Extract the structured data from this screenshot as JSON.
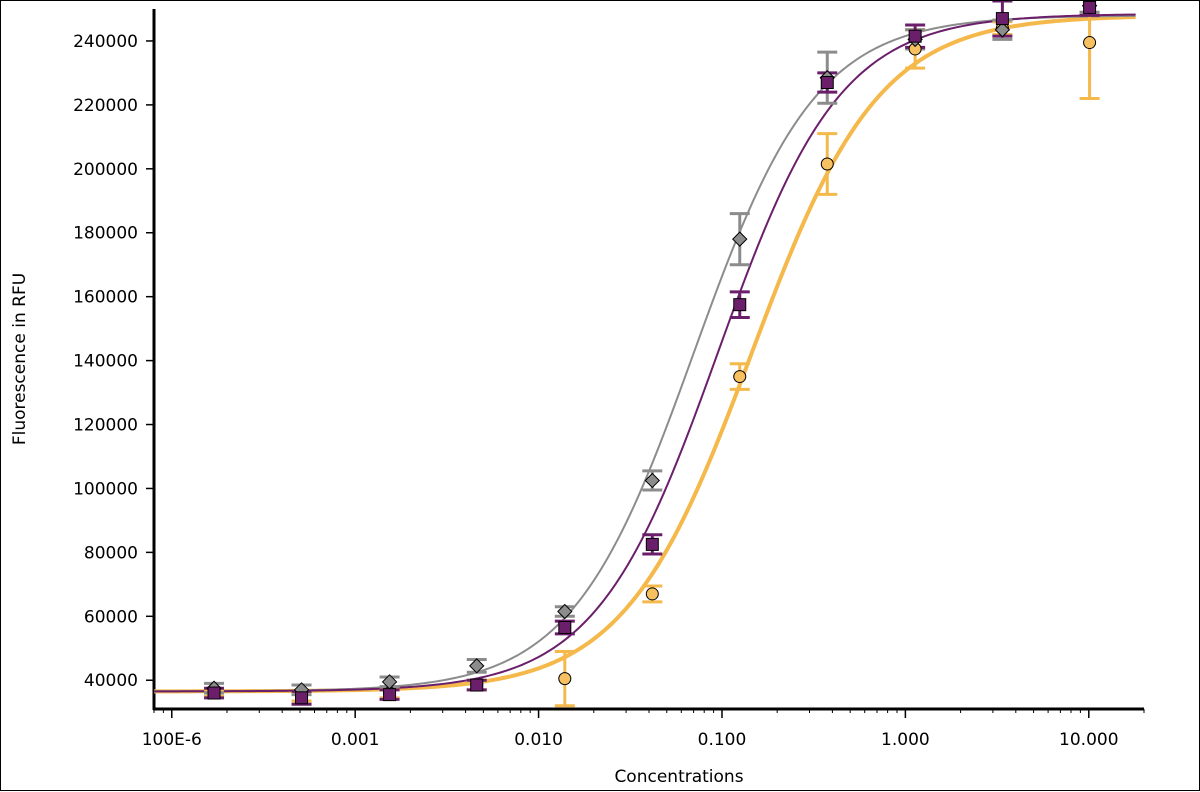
{
  "chart_data": {
    "type": "scatter",
    "xlabel": "Concentrations",
    "ylabel": "Fluorescence in RFU",
    "x_scale": "log",
    "xlim": [
      8e-05,
      20
    ],
    "ylim": [
      31000,
      250000
    ],
    "x_ticks": [
      {
        "value": 0.0001,
        "label": "100E-6"
      },
      {
        "value": 0.001,
        "label": "0.001"
      },
      {
        "value": 0.01,
        "label": "0.010"
      },
      {
        "value": 0.1,
        "label": "0.100"
      },
      {
        "value": 1,
        "label": "1.000"
      },
      {
        "value": 10,
        "label": "10.000"
      }
    ],
    "y_ticks": [
      40000,
      60000,
      80000,
      100000,
      120000,
      140000,
      160000,
      180000,
      200000,
      220000,
      240000
    ],
    "grid": false,
    "legend": "none",
    "series": [
      {
        "marker": "diamond",
        "color": "#8c8c8c",
        "fill": "#8c8c8c",
        "fit": {
          "bottom": 36500,
          "top": 248000,
          "ec50": 0.07,
          "hill": 1.3
        },
        "points": [
          {
            "x": 0.00017,
            "y": 37500,
            "err": 1500
          },
          {
            "x": 0.00051,
            "y": 37000,
            "err": 1500
          },
          {
            "x": 0.00154,
            "y": 39500,
            "err": 1500
          },
          {
            "x": 0.0046,
            "y": 44500,
            "err": 2000
          },
          {
            "x": 0.0139,
            "y": 61500,
            "err": 1500
          },
          {
            "x": 0.0417,
            "y": 102500,
            "err": 3000
          },
          {
            "x": 0.125,
            "y": 178000,
            "err": 8000
          },
          {
            "x": 0.375,
            "y": 228500,
            "err": 8000
          },
          {
            "x": 1.13,
            "y": 240500,
            "err": 3000
          },
          {
            "x": 3.38,
            "y": 243500,
            "err": 3000
          },
          {
            "x": 10.1,
            "y": 251000,
            "err": 2000
          }
        ]
      },
      {
        "marker": "square",
        "color": "#6b1f6b",
        "fill": "#6b1f6b",
        "fit": {
          "bottom": 36500,
          "top": 248500,
          "ec50": 0.095,
          "hill": 1.3
        },
        "points": [
          {
            "x": 0.00017,
            "y": 36000,
            "err": 1500
          },
          {
            "x": 0.00051,
            "y": 34500,
            "err": 2000
          },
          {
            "x": 0.00154,
            "y": 35500,
            "err": 1500
          },
          {
            "x": 0.0046,
            "y": 38500,
            "err": 1500
          },
          {
            "x": 0.0139,
            "y": 56500,
            "err": 2000
          },
          {
            "x": 0.0417,
            "y": 82500,
            "err": 3000
          },
          {
            "x": 0.125,
            "y": 157500,
            "err": 4000
          },
          {
            "x": 0.375,
            "y": 227000,
            "err": 3000
          },
          {
            "x": 1.13,
            "y": 241500,
            "err": 3500
          },
          {
            "x": 3.38,
            "y": 247000,
            "err": 5500
          },
          {
            "x": 10.1,
            "y": 250500,
            "err": 2500
          }
        ]
      },
      {
        "marker": "circle",
        "color": "#f5b84a",
        "fill": "#f7c060",
        "fit": {
          "bottom": 36500,
          "top": 248000,
          "ec50": 0.145,
          "hill": 1.25
        },
        "points": [
          {
            "x": 0.00017,
            "y": 36000,
            "err": 1000
          },
          {
            "x": 0.00051,
            "y": 35000,
            "err": 1500
          },
          {
            "x": 0.00154,
            "y": 36000,
            "err": 1500
          },
          {
            "x": 0.0046,
            "y": 38500,
            "err": 1500
          },
          {
            "x": 0.0139,
            "y": 40500,
            "err": 8500
          },
          {
            "x": 0.0417,
            "y": 67000,
            "err": 2500
          },
          {
            "x": 0.125,
            "y": 135000,
            "err": 4000
          },
          {
            "x": 0.375,
            "y": 201500,
            "err": 9500
          },
          {
            "x": 1.13,
            "y": 237500,
            "err": 6000
          },
          {
            "x": 3.38,
            "y": 244000,
            "err": 2000
          },
          {
            "x": 10.1,
            "y": 239500,
            "err": 17500
          }
        ]
      }
    ]
  }
}
